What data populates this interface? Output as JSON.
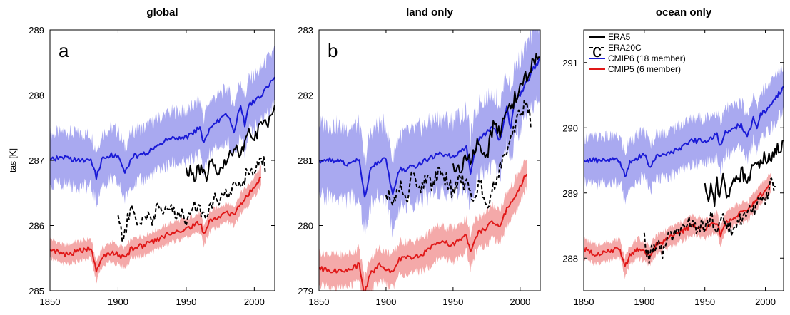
{
  "chart_data": [
    {
      "type": "line",
      "title": "global",
      "panel_label": "a",
      "xlabel": "",
      "ylabel": "tas [K]",
      "xlim": [
        1850,
        2015
      ],
      "ylim": [
        285,
        289
      ],
      "xticks": [
        "1850",
        "1900",
        "1950",
        "2000"
      ],
      "yticks": [
        "285",
        "286",
        "287",
        "288",
        "289"
      ],
      "series": [
        {
          "name": "CMIP6 (18 member)",
          "color": "#1a1ad6",
          "style": "solid",
          "band_color": "#a9a9f0",
          "x": [
            1850,
            1860,
            1870,
            1880,
            1884,
            1888,
            1895,
            1900,
            1905,
            1910,
            1920,
            1930,
            1940,
            1950,
            1960,
            1963,
            1967,
            1970,
            1980,
            1985,
            1990,
            1993,
            1996,
            2000,
            2005,
            2010,
            2015
          ],
          "y": [
            287.0,
            287.05,
            287.0,
            287.0,
            286.75,
            287.0,
            287.1,
            287.05,
            286.8,
            287.05,
            287.1,
            287.25,
            287.35,
            287.35,
            287.5,
            287.25,
            287.5,
            287.55,
            287.7,
            287.45,
            287.85,
            287.55,
            287.85,
            287.9,
            288.0,
            288.15,
            288.28
          ],
          "band_width": 0.4
        },
        {
          "name": "CMIP5 (6 member)",
          "color": "#e01818",
          "style": "solid",
          "band_color": "#f4a9a9",
          "x": [
            1850,
            1860,
            1870,
            1880,
            1884,
            1888,
            1895,
            1900,
            1905,
            1910,
            1920,
            1930,
            1940,
            1950,
            1960,
            1963,
            1967,
            1970,
            1980,
            1985,
            1990,
            1995,
            2000,
            2005
          ],
          "y": [
            285.65,
            285.55,
            285.6,
            285.65,
            285.3,
            285.5,
            285.6,
            285.55,
            285.5,
            285.65,
            285.7,
            285.8,
            285.9,
            285.95,
            286.05,
            285.85,
            286.05,
            286.1,
            286.2,
            286.15,
            286.35,
            286.45,
            286.6,
            286.75
          ],
          "band_width": 0.15
        },
        {
          "name": "ERA20C",
          "color": "#000000",
          "style": "dashed",
          "x": [
            1900,
            1903,
            1906,
            1910,
            1915,
            1920,
            1925,
            1930,
            1935,
            1940,
            1945,
            1950,
            1955,
            1960,
            1965,
            1970,
            1975,
            1980,
            1985,
            1990,
            1995,
            2000,
            2005,
            2008
          ],
          "y": [
            286.15,
            285.8,
            286.0,
            286.25,
            286.0,
            286.2,
            286.1,
            286.3,
            286.2,
            286.25,
            286.2,
            286.1,
            286.3,
            286.25,
            286.2,
            286.4,
            286.35,
            286.5,
            286.6,
            286.65,
            286.8,
            286.9,
            287.0,
            286.9
          ],
          "band_width": 0
        },
        {
          "name": "ERA5",
          "color": "#000000",
          "style": "solid",
          "x": [
            1950,
            1955,
            1960,
            1965,
            1968,
            1972,
            1976,
            1980,
            1985,
            1990,
            1995,
            2000,
            2005,
            2010,
            2015
          ],
          "y": [
            286.9,
            286.75,
            286.85,
            286.7,
            286.95,
            286.8,
            286.85,
            287.0,
            287.2,
            287.1,
            287.4,
            287.3,
            287.55,
            287.6,
            287.75
          ],
          "band_width": 0
        }
      ]
    },
    {
      "type": "line",
      "title": "land only",
      "panel_label": "b",
      "xlabel": "",
      "ylabel": "",
      "xlim": [
        1850,
        2015
      ],
      "ylim": [
        279,
        283
      ],
      "xticks": [
        "1850",
        "1900",
        "1950",
        "2000"
      ],
      "yticks": [
        "279",
        "280",
        "281",
        "282",
        "283"
      ],
      "series": [
        {
          "name": "CMIP6 (18 member)",
          "color": "#1a1ad6",
          "style": "solid",
          "band_color": "#a9a9f0",
          "x": [
            1850,
            1860,
            1870,
            1880,
            1884,
            1888,
            1895,
            1900,
            1905,
            1910,
            1920,
            1930,
            1940,
            1950,
            1960,
            1963,
            1967,
            1970,
            1980,
            1985,
            1990,
            1993,
            1996,
            2000,
            2005,
            2010,
            2015
          ],
          "y": [
            281.0,
            281.0,
            280.95,
            281.0,
            280.4,
            280.85,
            281.0,
            281.0,
            280.45,
            280.85,
            280.9,
            281.0,
            281.1,
            281.05,
            281.2,
            280.8,
            281.2,
            281.35,
            281.5,
            281.3,
            281.8,
            281.5,
            281.9,
            282.0,
            282.2,
            282.4,
            282.55
          ],
          "band_width": 0.55
        },
        {
          "name": "CMIP5 (6 member)",
          "color": "#e01818",
          "style": "solid",
          "band_color": "#f4a9a9",
          "x": [
            1850,
            1860,
            1870,
            1880,
            1884,
            1888,
            1895,
            1900,
            1905,
            1910,
            1920,
            1930,
            1940,
            1950,
            1960,
            1963,
            1967,
            1970,
            1980,
            1985,
            1990,
            1995,
            2000,
            2005
          ],
          "y": [
            279.35,
            279.3,
            279.3,
            279.4,
            278.95,
            279.25,
            279.4,
            279.35,
            279.3,
            279.5,
            279.5,
            279.6,
            279.75,
            279.7,
            279.85,
            279.6,
            279.85,
            279.9,
            280.05,
            280.0,
            280.25,
            280.4,
            280.6,
            280.8
          ],
          "band_width": 0.25
        },
        {
          "name": "ERA20C",
          "color": "#000000",
          "style": "dashed",
          "x": [
            1900,
            1905,
            1910,
            1915,
            1920,
            1925,
            1930,
            1935,
            1940,
            1945,
            1950,
            1955,
            1960,
            1965,
            1970,
            1975,
            1980,
            1985,
            1990,
            1995,
            2000,
            2005,
            2008
          ],
          "y": [
            280.55,
            280.3,
            280.6,
            280.4,
            280.8,
            280.5,
            280.75,
            280.6,
            280.9,
            280.7,
            280.5,
            280.75,
            280.6,
            280.45,
            280.7,
            280.3,
            280.6,
            280.9,
            281.2,
            281.5,
            281.7,
            281.9,
            281.6
          ],
          "band_width": 0
        },
        {
          "name": "ERA5",
          "color": "#000000",
          "style": "solid",
          "x": [
            1950,
            1955,
            1960,
            1965,
            1970,
            1975,
            1980,
            1985,
            1990,
            1995,
            2000,
            2005,
            2010,
            2015
          ],
          "y": [
            280.9,
            280.85,
            281.0,
            281.1,
            281.3,
            281.05,
            281.55,
            281.4,
            281.8,
            281.9,
            282.1,
            282.3,
            282.5,
            282.6
          ],
          "band_width": 0
        }
      ]
    },
    {
      "type": "line",
      "title": "ocean only",
      "panel_label": "c",
      "xlabel": "",
      "ylabel": "",
      "xlim": [
        1850,
        2015
      ],
      "ylim": [
        287.5,
        291.5
      ],
      "xticks": [
        "1850",
        "1900",
        "1950",
        "2000"
      ],
      "yticks": [
        "288",
        "289",
        "290",
        "291"
      ],
      "series": [
        {
          "name": "CMIP6 (18 member)",
          "color": "#1a1ad6",
          "style": "solid",
          "band_color": "#a9a9f0",
          "x": [
            1850,
            1860,
            1870,
            1880,
            1884,
            1888,
            1895,
            1900,
            1905,
            1910,
            1920,
            1930,
            1940,
            1950,
            1960,
            1963,
            1967,
            1970,
            1980,
            1985,
            1990,
            1993,
            1996,
            2000,
            2005,
            2010,
            2015
          ],
          "y": [
            289.5,
            289.5,
            289.5,
            289.5,
            289.25,
            289.45,
            289.55,
            289.6,
            289.4,
            289.55,
            289.6,
            289.7,
            289.8,
            289.8,
            289.9,
            289.7,
            289.95,
            289.95,
            290.05,
            289.85,
            290.15,
            289.95,
            290.2,
            290.25,
            290.35,
            290.5,
            290.62
          ],
          "band_width": 0.35
        },
        {
          "name": "CMIP5 (6 member)",
          "color": "#e01818",
          "style": "solid",
          "band_color": "#f4a9a9",
          "x": [
            1850,
            1860,
            1870,
            1880,
            1884,
            1888,
            1895,
            1900,
            1905,
            1910,
            1920,
            1930,
            1940,
            1950,
            1960,
            1963,
            1967,
            1970,
            1980,
            1985,
            1990,
            1995,
            2000,
            2005
          ],
          "y": [
            288.15,
            288.05,
            288.1,
            288.15,
            287.85,
            288.05,
            288.15,
            288.1,
            288.05,
            288.2,
            288.3,
            288.4,
            288.5,
            288.45,
            288.55,
            288.35,
            288.55,
            288.6,
            288.7,
            288.7,
            288.85,
            288.95,
            289.05,
            289.15
          ],
          "band_width": 0.15
        },
        {
          "name": "ERA20C",
          "color": "#000000",
          "style": "dashed",
          "x": [
            1900,
            1903,
            1906,
            1910,
            1915,
            1920,
            1925,
            1930,
            1935,
            1940,
            1945,
            1950,
            1955,
            1960,
            1965,
            1970,
            1975,
            1980,
            1985,
            1990,
            1995,
            2000,
            2005,
            2008
          ],
          "y": [
            288.35,
            288.0,
            288.1,
            288.2,
            288.1,
            288.3,
            288.4,
            288.45,
            288.5,
            288.55,
            288.45,
            288.5,
            288.6,
            288.45,
            288.6,
            288.5,
            288.4,
            288.6,
            288.8,
            288.7,
            288.95,
            288.9,
            289.15,
            289.0
          ],
          "band_width": 0
        },
        {
          "name": "ERA5",
          "color": "#000000",
          "style": "solid",
          "x": [
            1950,
            1953,
            1955,
            1958,
            1960,
            1963,
            1965,
            1968,
            1970,
            1975,
            1980,
            1985,
            1990,
            1995,
            2000,
            2005,
            2010,
            2015
          ],
          "y": [
            289.1,
            288.9,
            289.1,
            288.9,
            289.15,
            289.0,
            289.2,
            288.95,
            289.05,
            289.2,
            289.3,
            289.25,
            289.4,
            289.5,
            289.55,
            289.6,
            289.65,
            289.8
          ],
          "band_width": 0
        }
      ]
    }
  ],
  "legend": {
    "placement": "top-left of panel c",
    "entries": [
      {
        "label": "ERA5",
        "color": "#000000",
        "style": "solid"
      },
      {
        "label": "ERA20C",
        "color": "#000000",
        "style": "dashed"
      },
      {
        "label": "CMIP6 (18 member)",
        "color": "#1a1ad6",
        "style": "solid"
      },
      {
        "label": "CMIP5 (6 member)",
        "color": "#e01818",
        "style": "solid"
      }
    ]
  }
}
